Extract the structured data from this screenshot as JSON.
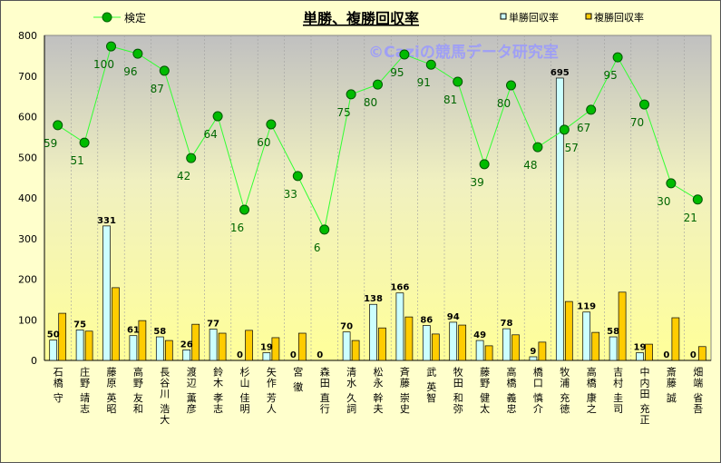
{
  "chart_data": {
    "type": "bar",
    "title": "単勝、複勝回収率",
    "watermark": "©Caziの競馬データ研究室",
    "ylim": [
      0,
      800
    ],
    "yticks": [
      0,
      100,
      200,
      300,
      400,
      500,
      600,
      700,
      800
    ],
    "legend": {
      "placement": "top",
      "line_label": "検定",
      "bar1_label": "単勝回収率",
      "bar2_label": "複勝回収率"
    },
    "categories": [
      "石橋 守",
      "庄野 靖志",
      "藤原 英昭",
      "高野 友和",
      "長谷川 浩大",
      "渡辺 薫彦",
      "鈴木 孝志",
      "杉山 佳明",
      "矢作 芳人",
      "宮 徹",
      "森田 直行",
      "清水 久詞",
      "松永 幹夫",
      "斉藤 崇史",
      "武 英智",
      "牧田 和弥",
      "藤野 健太",
      "高橋 義忠",
      "橋口 慎介",
      "牧浦 充徳",
      "高橋 康之",
      "吉村 圭司",
      "中内田 充正",
      "斎藤 誠",
      "畑端 省吾"
    ],
    "series": [
      {
        "name": "単勝回収率",
        "type": "bar",
        "color": "#ccffff",
        "values": [
          50,
          75,
          331,
          61,
          58,
          26,
          77,
          0,
          19,
          0,
          0,
          70,
          138,
          166,
          86,
          94,
          49,
          78,
          9,
          695,
          119,
          58,
          19,
          0,
          0
        ]
      },
      {
        "name": "複勝回収率",
        "type": "bar",
        "color": "#ffcc00",
        "values": [
          116,
          72,
          179,
          98,
          49,
          89,
          67,
          74,
          56,
          67,
          0,
          49,
          80,
          107,
          65,
          87,
          36,
          63,
          45,
          145,
          69,
          168,
          40,
          105,
          34
        ]
      },
      {
        "name": "検定",
        "type": "line",
        "color": "#00cc00",
        "values": [
          579,
          536,
          773,
          755,
          713,
          498,
          601,
          371,
          581,
          454,
          322,
          655,
          679,
          753,
          728,
          686,
          483,
          677,
          525,
          568,
          617,
          746,
          630,
          436,
          396
        ],
        "labels": [
          59,
          51,
          100,
          96,
          87,
          42,
          64,
          16,
          60,
          33,
          6,
          75,
          80,
          95,
          91,
          81,
          39,
          80,
          48,
          57,
          67,
          95,
          70,
          30,
          21
        ]
      }
    ]
  }
}
